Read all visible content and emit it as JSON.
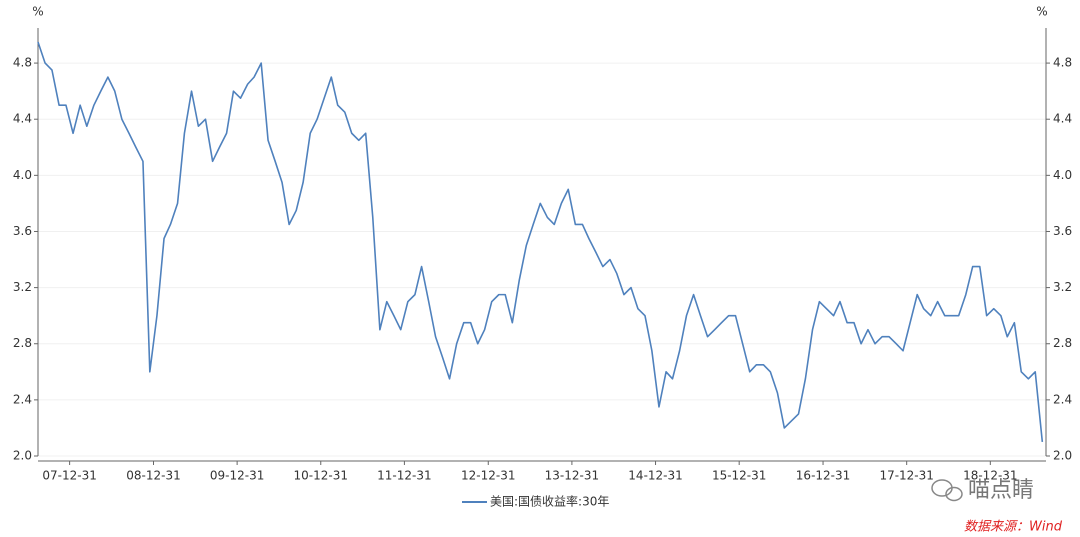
{
  "chart_data": {
    "type": "line",
    "y_unit": "%",
    "y2_unit": "%",
    "x": [
      "07-08-15",
      "07-09-15",
      "07-10-15",
      "07-11-15",
      "07-12-15",
      "08-01-15",
      "08-02-15",
      "08-03-15",
      "08-04-15",
      "08-05-15",
      "08-06-15",
      "08-07-15",
      "08-08-15",
      "08-09-15",
      "08-10-15",
      "08-11-15",
      "08-12-15",
      "09-01-15",
      "09-02-15",
      "09-03-15",
      "09-04-15",
      "09-05-15",
      "09-06-15",
      "09-07-15",
      "09-08-15",
      "09-09-15",
      "09-10-15",
      "09-11-15",
      "09-12-15",
      "10-01-15",
      "10-02-15",
      "10-03-15",
      "10-04-15",
      "10-05-15",
      "10-06-15",
      "10-07-15",
      "10-08-15",
      "10-09-15",
      "10-10-15",
      "10-11-15",
      "10-12-15",
      "11-01-15",
      "11-02-15",
      "11-03-15",
      "11-04-15",
      "11-05-15",
      "11-06-15",
      "11-07-15",
      "11-08-15",
      "11-09-15",
      "11-10-15",
      "11-11-15",
      "11-12-15",
      "12-01-15",
      "12-02-15",
      "12-03-15",
      "12-04-15",
      "12-05-15",
      "12-06-15",
      "12-07-15",
      "12-08-15",
      "12-09-15",
      "12-10-15",
      "12-11-15",
      "12-12-15",
      "13-01-15",
      "13-02-15",
      "13-03-15",
      "13-04-15",
      "13-05-15",
      "13-06-15",
      "13-07-15",
      "13-08-15",
      "13-09-15",
      "13-10-15",
      "13-11-15",
      "13-12-15",
      "14-01-15",
      "14-02-15",
      "14-03-15",
      "14-04-15",
      "14-05-15",
      "14-06-15",
      "14-07-15",
      "14-08-15",
      "14-09-15",
      "14-10-15",
      "14-11-15",
      "14-12-15",
      "15-01-15",
      "15-02-15",
      "15-03-15",
      "15-04-15",
      "15-05-15",
      "15-06-15",
      "15-07-15",
      "15-08-15",
      "15-09-15",
      "15-10-15",
      "15-11-15",
      "15-12-15",
      "16-01-15",
      "16-02-15",
      "16-03-15",
      "16-04-15",
      "16-05-15",
      "16-06-15",
      "16-07-15",
      "16-08-15",
      "16-09-15",
      "16-10-15",
      "16-11-15",
      "16-12-15",
      "17-01-15",
      "17-02-15",
      "17-03-15",
      "17-04-15",
      "17-05-15",
      "17-06-15",
      "17-07-15",
      "17-08-15",
      "17-09-15",
      "17-10-15",
      "17-11-15",
      "17-12-15",
      "18-01-15",
      "18-02-15",
      "18-03-15",
      "18-04-15",
      "18-05-15",
      "18-06-15",
      "18-07-15",
      "18-08-15",
      "18-09-15",
      "18-10-15",
      "18-11-15",
      "18-12-15",
      "19-01-15",
      "19-02-15",
      "19-03-15",
      "19-04-15",
      "19-05-15",
      "19-06-15",
      "19-07-15",
      "19-08-15"
    ],
    "series": [
      {
        "name": "美国:国债收益率:30年",
        "color": "#4f81bd",
        "values": [
          4.95,
          4.8,
          4.75,
          4.5,
          4.5,
          4.3,
          4.5,
          4.35,
          4.5,
          4.6,
          4.7,
          4.6,
          4.4,
          4.3,
          4.2,
          4.1,
          2.6,
          3.0,
          3.55,
          3.65,
          3.8,
          4.3,
          4.6,
          4.35,
          4.4,
          4.1,
          4.2,
          4.3,
          4.6,
          4.55,
          4.65,
          4.7,
          4.8,
          4.25,
          4.1,
          3.95,
          3.65,
          3.75,
          3.95,
          4.3,
          4.4,
          4.55,
          4.7,
          4.5,
          4.45,
          4.3,
          4.25,
          4.3,
          3.7,
          2.9,
          3.1,
          3.0,
          2.9,
          3.1,
          3.15,
          3.35,
          3.1,
          2.85,
          2.7,
          2.55,
          2.8,
          2.95,
          2.95,
          2.8,
          2.9,
          3.1,
          3.15,
          3.15,
          2.95,
          3.25,
          3.5,
          3.65,
          3.8,
          3.7,
          3.65,
          3.8,
          3.9,
          3.65,
          3.65,
          3.55,
          3.45,
          3.35,
          3.4,
          3.3,
          3.15,
          3.2,
          3.05,
          3.0,
          2.75,
          2.35,
          2.6,
          2.55,
          2.75,
          3.0,
          3.15,
          3.0,
          2.85,
          2.9,
          2.95,
          3.0,
          3.0,
          2.8,
          2.6,
          2.65,
          2.65,
          2.6,
          2.45,
          2.2,
          2.25,
          2.3,
          2.55,
          2.9,
          3.1,
          3.05,
          3.0,
          3.1,
          2.95,
          2.95,
          2.8,
          2.9,
          2.8,
          2.85,
          2.85,
          2.8,
          2.75,
          2.95,
          3.15,
          3.05,
          3.0,
          3.1,
          3.0,
          3.0,
          3.0,
          3.15,
          3.35,
          3.35,
          3.0,
          3.05,
          3.0,
          2.85,
          2.95,
          2.6,
          2.55,
          2.6,
          2.1
        ]
      }
    ],
    "xlim": [
      "07-08-15",
      "19-08-31"
    ],
    "xticks": [
      "07-12-31",
      "08-12-31",
      "09-12-31",
      "10-12-31",
      "11-12-31",
      "12-12-31",
      "13-12-31",
      "14-12-31",
      "15-12-31",
      "16-12-31",
      "17-12-31",
      "18-12-31"
    ],
    "ylim": [
      2.0,
      5.05
    ],
    "yticks": [
      {
        "value": 2,
        "label": "2.0"
      },
      2.4,
      2.8,
      3.2,
      3.6,
      {
        "value": 4,
        "label": "4.0"
      },
      4.4,
      4.8
    ],
    "y2lim": [
      2.0,
      5.05
    ],
    "y2ticks": [
      {
        "value": 2,
        "label": "2.0"
      },
      2.4,
      2.8,
      3.2,
      3.6,
      {
        "value": 4,
        "label": "4.0"
      },
      4.4,
      4.8
    ],
    "grid": true,
    "watermark": "喵点睛",
    "source": "数据来源：Wind"
  }
}
